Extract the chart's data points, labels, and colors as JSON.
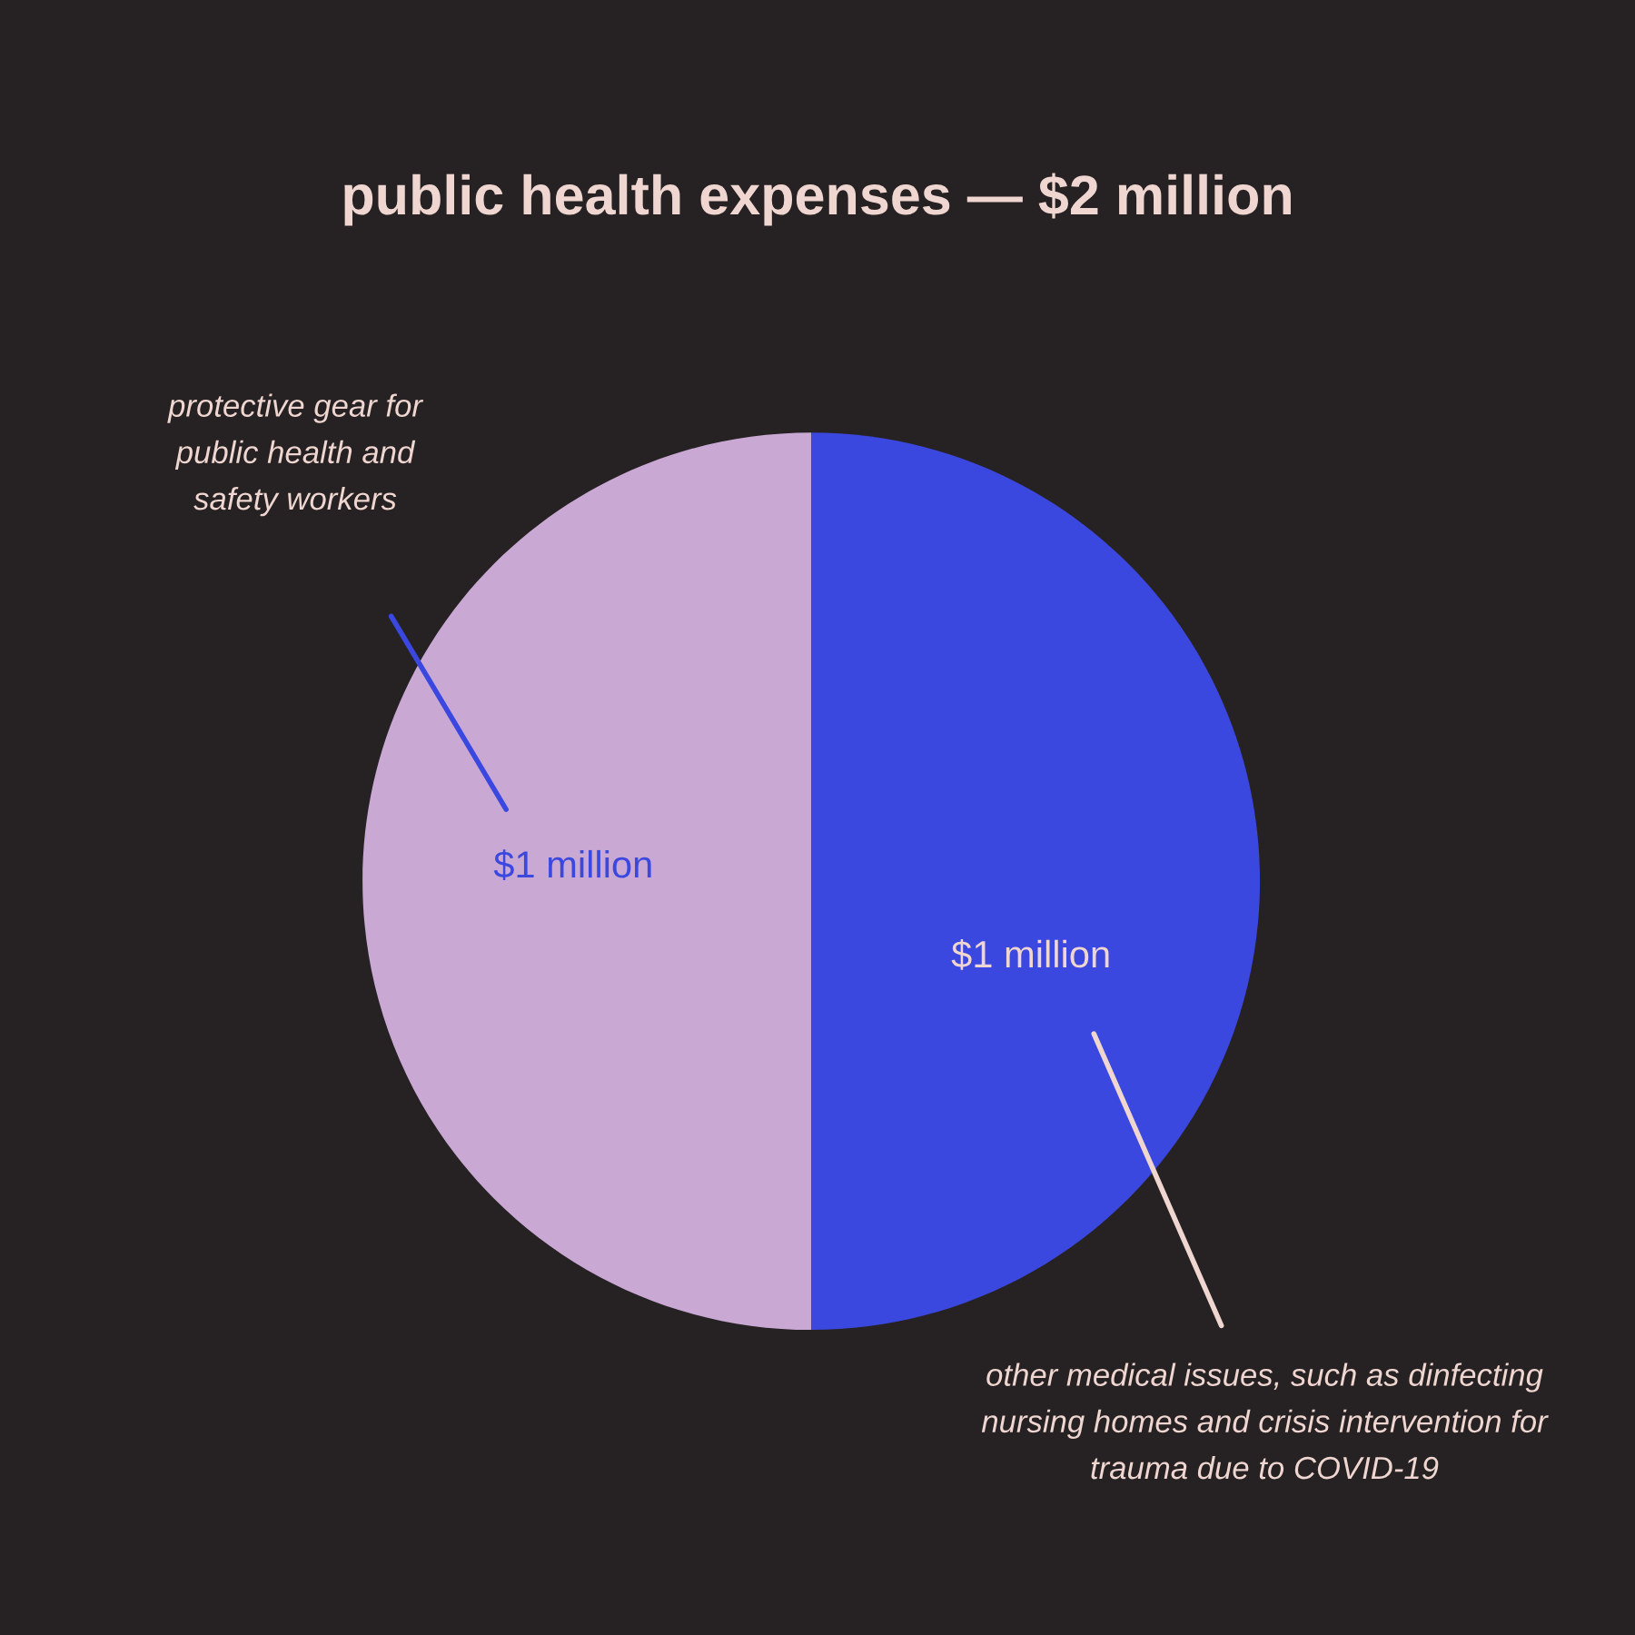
{
  "chart_data": {
    "type": "pie",
    "title": "public health expenses — $2 million",
    "categories": [
      "protective gear for\npublic health and\nsafety workers",
      "other medical issues, such as dinfecting\nnursing homes and crisis intervention for\ntrauma due to COVID-19"
    ],
    "values": [
      1,
      1
    ],
    "colors": [
      "#c9a9d4",
      "#3b48e0"
    ],
    "value_labels": [
      "$1 million",
      "$1 million"
    ]
  }
}
